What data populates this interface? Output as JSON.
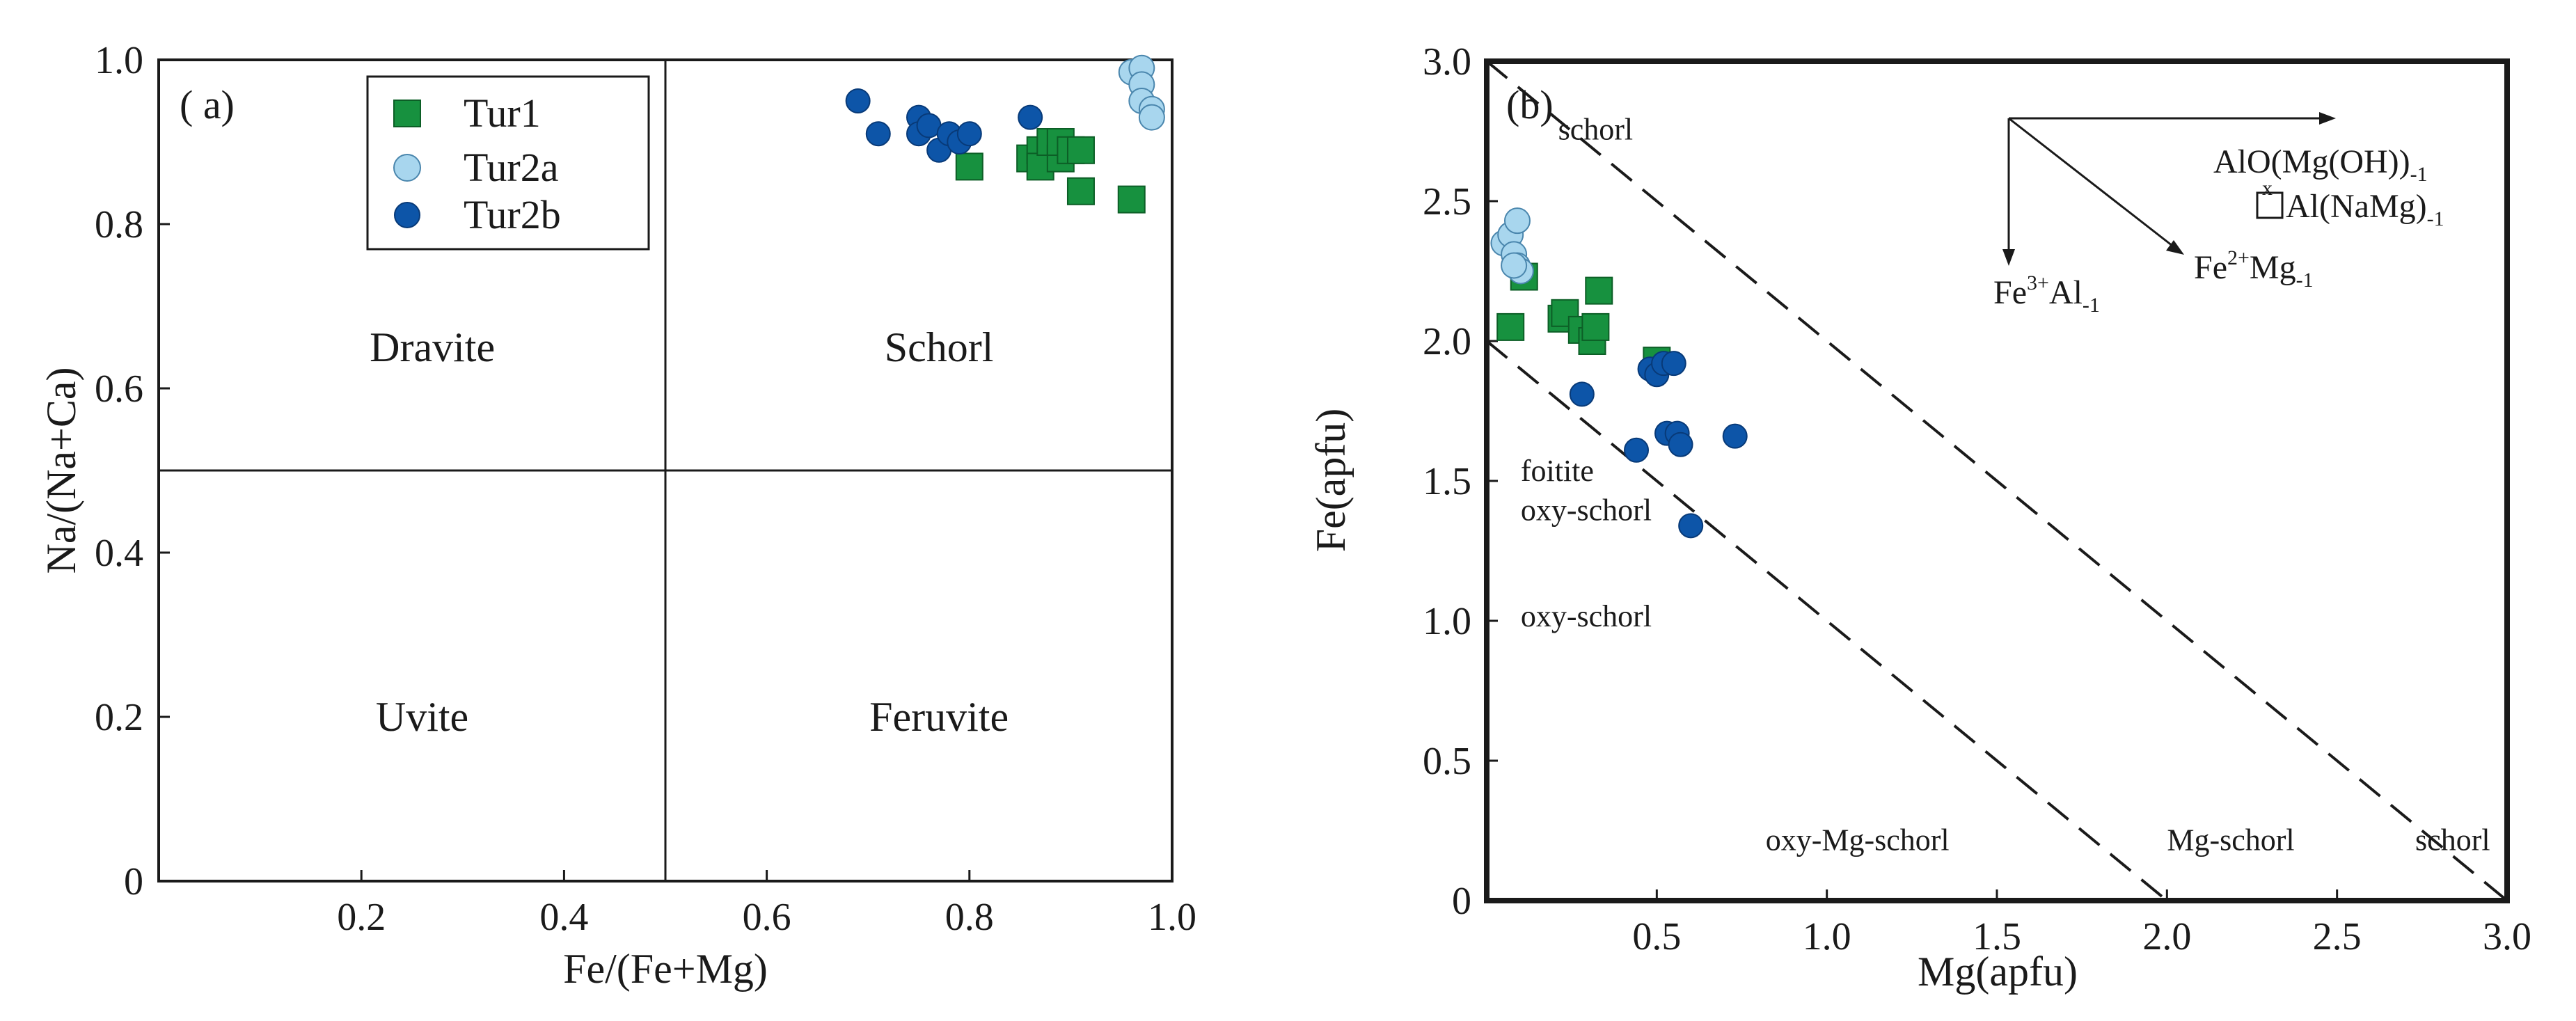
{
  "colors": {
    "tur1": "#17913f",
    "tur1_edge": "#0c5e26",
    "tur2a": "#a8d6ee",
    "tur2a_edge": "#4a86ad",
    "tur2b": "#0d55a8",
    "tur2b_edge": "#083a78",
    "axis": "#1a1a1a"
  },
  "chart_data": [
    {
      "type": "scatter",
      "panel_label": "( a)",
      "xlabel": "Fe/(Fe+Mg)",
      "ylabel": "Na/(Na+Ca)",
      "xlim": [
        0,
        1.0
      ],
      "ylim": [
        0,
        1.0
      ],
      "x_ticks": [
        {
          "value": 0.2,
          "label": "0.2"
        },
        {
          "value": 0.4,
          "label": "0.4"
        },
        {
          "value": 0.6,
          "label": "0.6"
        },
        {
          "value": 0.8,
          "label": "0.8"
        },
        {
          "value": 1.0,
          "label": "1.0"
        }
      ],
      "y_ticks": [
        {
          "value": 0,
          "label": "0"
        },
        {
          "value": 0.2,
          "label": "0.2"
        },
        {
          "value": 0.4,
          "label": "0.4"
        },
        {
          "value": 0.6,
          "label": "0.6"
        },
        {
          "value": 0.8,
          "label": "0.8"
        },
        {
          "value": 1.0,
          "label": "1.0"
        }
      ],
      "divider_lines": [
        {
          "x1": 0.5,
          "y1": 0,
          "x2": 0.5,
          "y2": 1.0
        },
        {
          "x1": 0,
          "y1": 0.5,
          "x2": 1.0,
          "y2": 0.5
        }
      ],
      "fields": [
        {
          "name": "Dravite",
          "x": 0.27,
          "y": 0.65
        },
        {
          "name": "Schorl",
          "x": 0.77,
          "y": 0.65
        },
        {
          "name": "Uvite",
          "x": 0.26,
          "y": 0.2
        },
        {
          "name": "Feruvite",
          "x": 0.77,
          "y": 0.2
        }
      ],
      "legend": {
        "placement": "top-left",
        "entries": [
          {
            "series": "Tur1",
            "label": "Tur1"
          },
          {
            "series": "Tur2a",
            "label": "Tur2a"
          },
          {
            "series": "Tur2b",
            "label": "Tur2b"
          }
        ]
      },
      "series": [
        {
          "name": "Tur1",
          "marker": "square",
          "points": [
            [
              0.8,
              0.87
            ],
            [
              0.86,
              0.88
            ],
            [
              0.87,
              0.89
            ],
            [
              0.87,
              0.87
            ],
            [
              0.88,
              0.9
            ],
            [
              0.89,
              0.88
            ],
            [
              0.89,
              0.9
            ],
            [
              0.9,
              0.89
            ],
            [
              0.91,
              0.84
            ],
            [
              0.91,
              0.89
            ],
            [
              0.96,
              0.83
            ]
          ]
        },
        {
          "name": "Tur2a",
          "marker": "circle",
          "points": [
            [
              0.96,
              0.985
            ],
            [
              0.97,
              0.99
            ],
            [
              0.97,
              0.97
            ],
            [
              0.97,
              0.95
            ],
            [
              0.98,
              0.94
            ],
            [
              0.98,
              0.93
            ]
          ]
        },
        {
          "name": "Tur2b",
          "marker": "circle",
          "points": [
            [
              0.69,
              0.95
            ],
            [
              0.71,
              0.91
            ],
            [
              0.75,
              0.93
            ],
            [
              0.75,
              0.91
            ],
            [
              0.76,
              0.92
            ],
            [
              0.77,
              0.89
            ],
            [
              0.78,
              0.91
            ],
            [
              0.79,
              0.9
            ],
            [
              0.8,
              0.91
            ],
            [
              0.86,
              0.93
            ]
          ]
        }
      ]
    },
    {
      "type": "scatter",
      "panel_label": "(b)",
      "xlabel": "Mg(apfu)",
      "ylabel": "Fe(apfu)",
      "xlim": [
        0,
        3.0
      ],
      "ylim": [
        0,
        3.0
      ],
      "x_ticks": [
        {
          "value": 0.5,
          "label": "0.5"
        },
        {
          "value": 1.0,
          "label": "1.0"
        },
        {
          "value": 1.5,
          "label": "1.5"
        },
        {
          "value": 2.0,
          "label": "2.0"
        },
        {
          "value": 2.5,
          "label": "2.5"
        },
        {
          "value": 3.0,
          "label": "3.0"
        }
      ],
      "y_ticks": [
        {
          "value": 0,
          "label": "0"
        },
        {
          "value": 0.5,
          "label": "0.5"
        },
        {
          "value": 1.0,
          "label": "1.0"
        },
        {
          "value": 1.5,
          "label": "1.5"
        },
        {
          "value": 2.0,
          "label": "2.0"
        },
        {
          "value": 2.5,
          "label": "2.5"
        },
        {
          "value": 3.0,
          "label": "3.0"
        }
      ],
      "dashed_lines": [
        {
          "x1": 0,
          "y1": 3.0,
          "x2": 3.0,
          "y2": 0
        },
        {
          "x1": 0,
          "y1": 2.0,
          "x2": 2.0,
          "y2": 0
        }
      ],
      "annotations": [
        {
          "text": "schorl",
          "x": 0.21,
          "y": 2.72
        },
        {
          "text": "foitite",
          "x": 0.1,
          "y": 1.5
        },
        {
          "text": "oxy-schorl",
          "x": 0.1,
          "y": 1.36
        },
        {
          "text": "oxy-schorl",
          "x": 0.1,
          "y": 0.98
        },
        {
          "text": "oxy-Mg-schorl",
          "x": 0.82,
          "y": 0.18
        },
        {
          "text": "Mg-schorl",
          "x": 2.0,
          "y": 0.18
        },
        {
          "text": "schorl",
          "x": 2.73,
          "y": 0.18
        }
      ],
      "exchange_vectors": [
        {
          "main": "AlO(Mg(OH))",
          "sub": "-1"
        },
        {
          "prefix": "x",
          "main": "Al(NaMg)",
          "sub": "-1"
        },
        {
          "main": "Fe",
          "sup": "2+",
          "main2": "Mg",
          "sub": "-1"
        },
        {
          "main": "Fe",
          "sup": "3+",
          "main2": "Al",
          "sub": "-1"
        }
      ],
      "series": [
        {
          "name": "Tur1",
          "marker": "square",
          "points": [
            [
              0.07,
              2.05
            ],
            [
              0.11,
              2.23
            ],
            [
              0.22,
              2.08
            ],
            [
              0.23,
              2.1
            ],
            [
              0.28,
              2.04
            ],
            [
              0.31,
              2.0
            ],
            [
              0.32,
              2.05
            ],
            [
              0.33,
              2.18
            ],
            [
              0.5,
              1.93
            ]
          ]
        },
        {
          "name": "Tur2a",
          "marker": "circle",
          "points": [
            [
              0.05,
              2.35
            ],
            [
              0.07,
              2.38
            ],
            [
              0.09,
              2.43
            ],
            [
              0.08,
              2.31
            ],
            [
              0.09,
              2.27
            ],
            [
              0.1,
              2.25
            ],
            [
              0.08,
              2.27
            ]
          ]
        },
        {
          "name": "Tur2b",
          "marker": "circle",
          "points": [
            [
              0.28,
              1.81
            ],
            [
              0.44,
              1.61
            ],
            [
              0.48,
              1.9
            ],
            [
              0.5,
              1.88
            ],
            [
              0.52,
              1.92
            ],
            [
              0.55,
              1.92
            ],
            [
              0.53,
              1.67
            ],
            [
              0.56,
              1.67
            ],
            [
              0.57,
              1.63
            ],
            [
              0.6,
              1.34
            ],
            [
              0.73,
              1.66
            ]
          ]
        }
      ]
    }
  ]
}
